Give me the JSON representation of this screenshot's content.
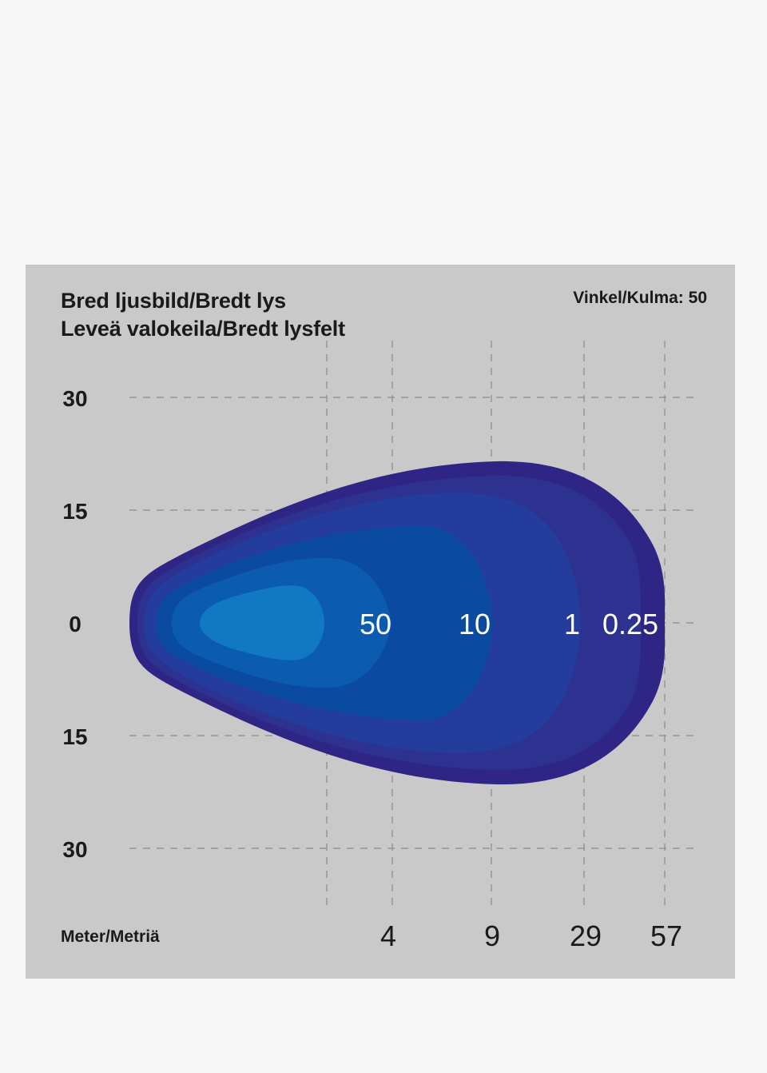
{
  "chart_data": {
    "type": "contour",
    "title_lines": [
      "Bred ljusbild/Bredt lys",
      "Leveä valokeila/Bredt lysfelt"
    ],
    "angle": {
      "label": "Vinkel/Kulma:",
      "value": "50"
    },
    "xlabel": "Meter/Metriä",
    "x_ticks": [
      "4",
      "9",
      "29",
      "57"
    ],
    "y_ticks": [
      "30",
      "15",
      "0",
      "15",
      "30"
    ],
    "grid": true,
    "zone_labels": [
      "50",
      "10",
      "1",
      "0.25"
    ],
    "zone_colors": [
      "#2f2585",
      "#2d3190",
      "#243c9c",
      "#0a4aa0",
      "#0b5cb1",
      "#1178c4"
    ]
  }
}
